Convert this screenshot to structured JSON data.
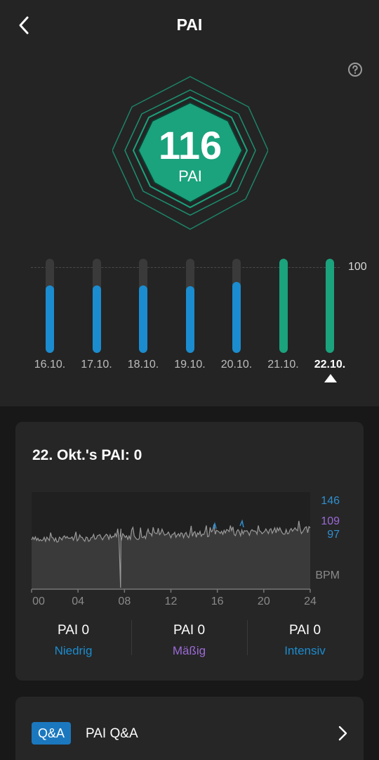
{
  "header": {
    "title": "PAI",
    "back_icon": "chevron-left-icon",
    "help_icon": "question-circle-icon"
  },
  "badge": {
    "value": "116",
    "unit": "PAI",
    "color": "#1aa37d"
  },
  "weekly": {
    "reference_label": "100",
    "reference_value": 100,
    "selected_index": 6,
    "days": [
      {
        "label": "16.10.",
        "level": 0.72,
        "color": "#1b8ccf"
      },
      {
        "label": "17.10.",
        "level": 0.72,
        "color": "#1b8ccf"
      },
      {
        "label": "18.10.",
        "level": 0.72,
        "color": "#1b8ccf"
      },
      {
        "label": "19.10.",
        "level": 0.71,
        "color": "#1b8ccf"
      },
      {
        "label": "20.10.",
        "level": 0.75,
        "color": "#1b8ccf"
      },
      {
        "label": "21.10.",
        "level": 1.0,
        "color": "#1aa37d"
      },
      {
        "label": "22.10.",
        "level": 1.0,
        "color": "#1aa37d"
      }
    ]
  },
  "day_card": {
    "title": "22. Okt.'s PAI: 0",
    "chart_data": {
      "type": "area",
      "x_ticks": [
        "00",
        "04",
        "08",
        "12",
        "16",
        "20",
        "24"
      ],
      "unit_label": "BPM",
      "zones": [
        {
          "label": "146",
          "value": 146,
          "color": "#2f8fd0"
        },
        {
          "label": "109",
          "value": 109,
          "color": "#9b6ad6"
        },
        {
          "label": "97",
          "value": 97,
          "color": "#2f8fd0"
        }
      ],
      "line_color": "#9a9a9a",
      "fill_color": "#3a3a3a"
    },
    "levels": [
      {
        "value": "PAI 0",
        "name": "Niedrig",
        "color": "#1b8ccf"
      },
      {
        "value": "PAI 0",
        "name": "Mäßig",
        "color": "#9b6ad6"
      },
      {
        "value": "PAI 0",
        "name": "Intensiv",
        "color": "#1b8ccf"
      }
    ]
  },
  "qa": {
    "badge": "Q&A",
    "label": "PAI Q&A",
    "chevron_icon": "chevron-right-icon"
  }
}
